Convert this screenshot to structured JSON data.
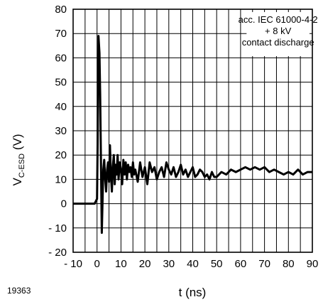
{
  "chart_data": {
    "type": "line",
    "title": "",
    "xlabel": "t (ns)",
    "ylabel_main": "V",
    "ylabel_sub": "C-ESD",
    "ylabel_unit": " (V)",
    "xlim": [
      -10,
      90
    ],
    "ylim": [
      -20,
      80
    ],
    "x_ticks": [
      -10,
      0,
      10,
      20,
      30,
      40,
      50,
      60,
      70,
      80,
      90
    ],
    "x_tick_labels": [
      "- 10",
      "0",
      "10",
      "20",
      "30",
      "40",
      "50",
      "60",
      "70",
      "80",
      "90"
    ],
    "y_ticks": [
      -20,
      -10,
      0,
      10,
      20,
      30,
      40,
      50,
      60,
      70,
      80
    ],
    "y_tick_labels": [
      "- 20",
      "- 10",
      "0",
      "10",
      "20",
      "30",
      "40",
      "50",
      "60",
      "70",
      "80"
    ],
    "grid": true,
    "annotation": [
      "acc. IEC 61000-4-2",
      "+ 8 kV",
      "contact discharge"
    ],
    "annotation_placement": "top-right",
    "figure_id": "19363",
    "series": [
      {
        "color": "#000000",
        "x": [
          -10,
          -5,
          -1,
          0,
          0.3,
          0.6,
          1.0,
          1.3,
          1.6,
          2.0,
          2.3,
          2.6,
          3.0,
          3.4,
          3.8,
          4.2,
          4.6,
          5.0,
          5.4,
          5.8,
          6.2,
          6.6,
          7.0,
          7.4,
          7.8,
          8.2,
          8.6,
          9.0,
          9.5,
          10,
          10.5,
          11,
          11.5,
          12,
          12.5,
          13,
          13.5,
          14,
          14.5,
          15,
          15.5,
          16,
          17,
          18,
          19,
          20,
          21,
          22,
          23,
          24,
          25,
          26,
          27,
          28,
          29,
          30,
          31,
          32,
          33,
          34,
          35,
          36,
          37,
          38,
          39,
          40,
          41,
          42,
          43,
          44,
          45,
          46,
          47,
          48,
          49,
          50,
          52,
          54,
          56,
          58,
          60,
          62,
          64,
          66,
          68,
          70,
          72,
          74,
          76,
          78,
          80,
          82,
          84,
          86,
          88,
          90
        ],
        "y": [
          0,
          0,
          0,
          2,
          30,
          69,
          62,
          45,
          20,
          -12,
          2,
          14,
          18,
          10,
          5,
          14,
          17,
          9,
          24,
          12,
          5,
          15,
          20,
          8,
          16,
          12,
          20,
          10,
          17,
          14,
          8,
          18,
          12,
          17,
          10,
          16,
          13,
          15,
          11,
          17,
          12,
          14,
          9,
          17,
          11,
          15,
          8,
          17,
          13,
          15,
          10,
          13,
          15,
          11,
          17,
          14,
          12,
          15,
          11,
          13,
          16,
          12,
          14,
          11,
          13,
          15,
          11,
          12,
          14,
          13,
          11,
          12,
          10,
          13,
          11,
          11,
          13,
          12,
          14,
          13,
          14,
          15,
          14,
          15,
          14,
          15,
          13,
          14,
          13,
          12,
          13,
          12,
          14,
          12,
          13,
          13
        ]
      }
    ]
  }
}
